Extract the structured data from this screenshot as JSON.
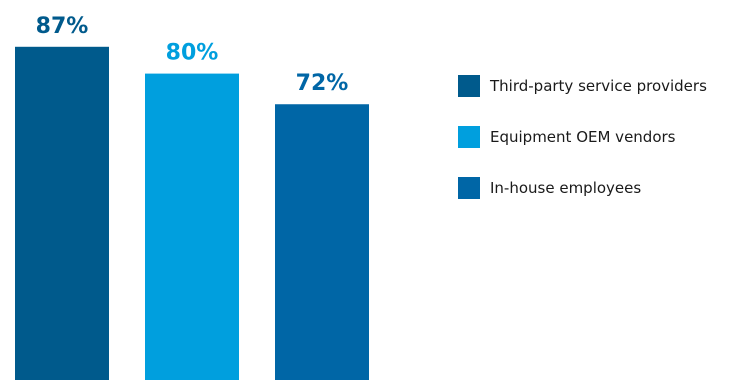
{
  "chart_data": {
    "type": "bar",
    "categories": [
      "Third-party service providers",
      "Equipment OEM vendors",
      "In-house employees"
    ],
    "values": [
      87,
      80,
      72
    ],
    "value_labels": [
      "87%",
      "80%",
      "72%"
    ],
    "colors": [
      "#005a8c",
      "#009fde",
      "#0066a6"
    ],
    "ylim": [
      0,
      100
    ],
    "grid": false,
    "legend_placement": "right",
    "legend": [
      {
        "label": "Third-party service providers",
        "color": "#005a8c"
      },
      {
        "label": "Equipment OEM vendors",
        "color": "#009fde"
      },
      {
        "label": "In-house employees",
        "color": "#0066a6"
      }
    ]
  }
}
